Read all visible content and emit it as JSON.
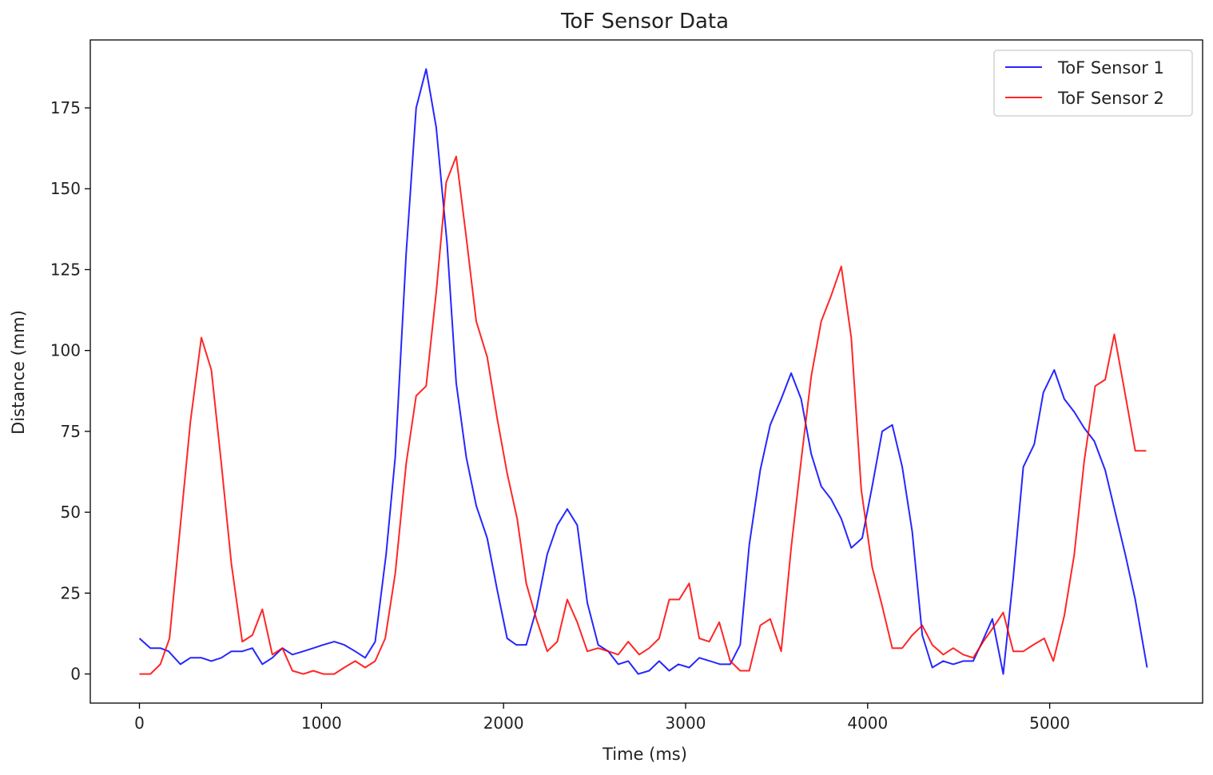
{
  "chart_data": {
    "type": "line",
    "title": "ToF Sensor Data",
    "xlabel": "Time (ms)",
    "ylabel": "Distance (mm)",
    "xlim": [
      -270,
      5840
    ],
    "ylim": [
      -9,
      196
    ],
    "xticks": [
      0,
      1000,
      2000,
      3000,
      4000,
      5000
    ],
    "yticks": [
      0,
      25,
      50,
      75,
      100,
      125,
      150,
      175
    ],
    "grid": false,
    "legend": "top-right",
    "series": [
      {
        "name": "ToF Sensor 1",
        "color": "#0000ff",
        "x": [
          0,
          60,
          115,
          160,
          225,
          280,
          340,
          395,
          450,
          505,
          565,
          620,
          675,
          730,
          785,
          840,
          900,
          955,
          1010,
          1070,
          1125,
          1185,
          1240,
          1295,
          1355,
          1405,
          1465,
          1520,
          1575,
          1630,
          1690,
          1740,
          1795,
          1850,
          1910,
          1965,
          2020,
          2070,
          2125,
          2180,
          2240,
          2295,
          2350,
          2405,
          2460,
          2520,
          2575,
          2630,
          2685,
          2740,
          2800,
          2855,
          2910,
          2960,
          3020,
          3075,
          3135,
          3190,
          3245,
          3300,
          3350,
          3410,
          3465,
          3525,
          3580,
          3635,
          3690,
          3745,
          3800,
          3855,
          3910,
          3970,
          4025,
          4080,
          4135,
          4190,
          4245,
          4300,
          4355,
          4415,
          4470,
          4525,
          4580,
          4630,
          4685,
          4745,
          4800,
          4855,
          4915,
          4965,
          5025,
          5080,
          5135,
          5190,
          5245,
          5305,
          5360,
          5415,
          5470,
          5535
        ],
        "y": [
          11,
          8,
          8,
          7,
          3,
          5,
          5,
          4,
          5,
          7,
          7,
          8,
          3,
          5,
          8,
          6,
          7,
          8,
          9,
          10,
          9,
          7,
          5,
          10,
          37,
          67,
          130,
          175,
          187,
          169,
          133,
          90,
          67,
          52,
          42,
          26,
          11,
          9,
          9,
          20,
          37,
          46,
          51,
          46,
          22,
          9,
          7,
          3,
          4,
          0,
          1,
          4,
          1,
          3,
          2,
          5,
          4,
          3,
          3,
          9,
          40,
          63,
          77,
          85,
          93,
          85,
          68,
          58,
          54,
          48,
          39,
          42,
          58,
          75,
          77,
          64,
          44,
          12,
          2,
          4,
          3,
          4,
          4,
          10,
          17,
          0,
          30,
          64,
          71,
          87,
          94,
          85,
          81,
          76,
          72,
          63,
          50,
          37,
          23,
          2
        ]
      },
      {
        "name": "ToF Sensor 2",
        "color": "#ff0000",
        "x": [
          0,
          60,
          115,
          165,
          220,
          280,
          340,
          395,
          450,
          505,
          565,
          620,
          675,
          730,
          785,
          840,
          900,
          955,
          1010,
          1070,
          1125,
          1185,
          1240,
          1295,
          1350,
          1405,
          1465,
          1520,
          1575,
          1630,
          1685,
          1740,
          1795,
          1850,
          1910,
          1965,
          2020,
          2075,
          2125,
          2180,
          2240,
          2295,
          2350,
          2405,
          2460,
          2520,
          2575,
          2630,
          2685,
          2745,
          2800,
          2855,
          2910,
          2965,
          3020,
          3075,
          3130,
          3185,
          3245,
          3300,
          3350,
          3410,
          3465,
          3525,
          3580,
          3635,
          3690,
          3745,
          3800,
          3855,
          3910,
          3965,
          4025,
          4080,
          4135,
          4190,
          4245,
          4300,
          4355,
          4415,
          4470,
          4525,
          4580,
          4635,
          4685,
          4745,
          4800,
          4855,
          4910,
          4970,
          5020,
          5080,
          5135,
          5190,
          5250,
          5305,
          5355,
          5410,
          5470,
          5530
        ],
        "y": [
          0,
          0,
          3,
          11,
          43,
          78,
          104,
          94,
          65,
          34,
          10,
          12,
          20,
          6,
          8,
          1,
          0,
          1,
          0,
          0,
          2,
          4,
          2,
          4,
          11,
          31,
          65,
          86,
          89,
          118,
          152,
          160,
          135,
          109,
          98,
          79,
          62,
          48,
          28,
          17,
          7,
          10,
          23,
          16,
          7,
          8,
          7,
          6,
          10,
          6,
          8,
          11,
          23,
          23,
          28,
          11,
          10,
          16,
          4,
          1,
          1,
          15,
          17,
          7,
          39,
          66,
          92,
          109,
          117,
          126,
          104,
          57,
          33,
          21,
          8,
          8,
          12,
          15,
          9,
          6,
          8,
          6,
          5,
          10,
          14,
          19,
          7,
          7,
          9,
          11,
          4,
          18,
          37,
          66,
          89,
          91,
          105,
          88,
          69,
          69
        ]
      }
    ]
  }
}
